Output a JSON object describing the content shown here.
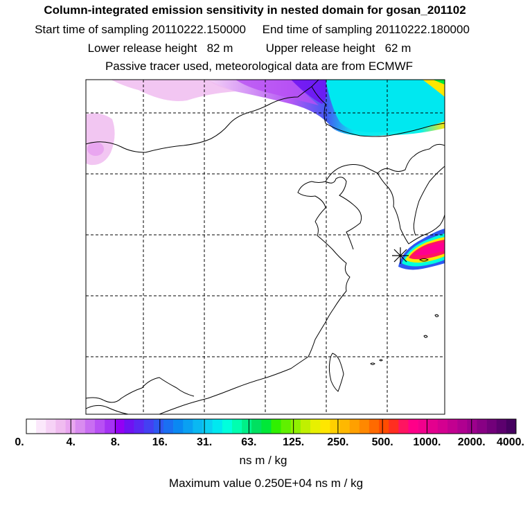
{
  "header": {
    "title": "Column-integrated emission sensitivity in nested domain for gosan_201102",
    "line2": "Start time of sampling 20110222.150000     End time of sampling 20110222.180000",
    "line3": "Lower release height   82 m          Upper release height   62 m",
    "line4": "Passive tracer used, meteorological data are from ECMWF"
  },
  "map": {
    "receptor_marker": "asterisk-icon",
    "receptor_color": "#000000"
  },
  "colorbar": {
    "tick_labels": [
      "0.",
      "4.",
      "8.",
      "16.",
      "31.",
      "63.",
      "125.",
      "250.",
      "500.",
      "1000.",
      "2000.",
      "4000."
    ],
    "colors": [
      "#ffffff",
      "#fbe8fb",
      "#f6d2f6",
      "#f0bcf0",
      "#e9a6f0",
      "#d98cf0",
      "#c96ef2",
      "#b850f4",
      "#a532f4",
      "#9300f4",
      "#6f12f2",
      "#5a28f2",
      "#4440f2",
      "#2e58f2",
      "#1a70f2",
      "#0a88f2",
      "#0aa0f2",
      "#0ab8f2",
      "#0ad0f2",
      "#00e8f0",
      "#00ffdd",
      "#00ffb0",
      "#00f088",
      "#00e060",
      "#00e838",
      "#30f000",
      "#60f000",
      "#90f000",
      "#c0f000",
      "#e8f000",
      "#ffe600",
      "#ffd000",
      "#ffb800",
      "#ffa000",
      "#ff8800",
      "#ff6a00",
      "#ff4c00",
      "#ff2e20",
      "#ff1460",
      "#ff0088",
      "#f2008c",
      "#e4008e",
      "#d40090",
      "#c20090",
      "#b00090",
      "#9c008c",
      "#880084",
      "#72007a",
      "#5c006e",
      "#460060"
    ]
  },
  "units": "ns m / kg",
  "max_value": "Maximum value  0.250E+04 ns m / kg"
}
